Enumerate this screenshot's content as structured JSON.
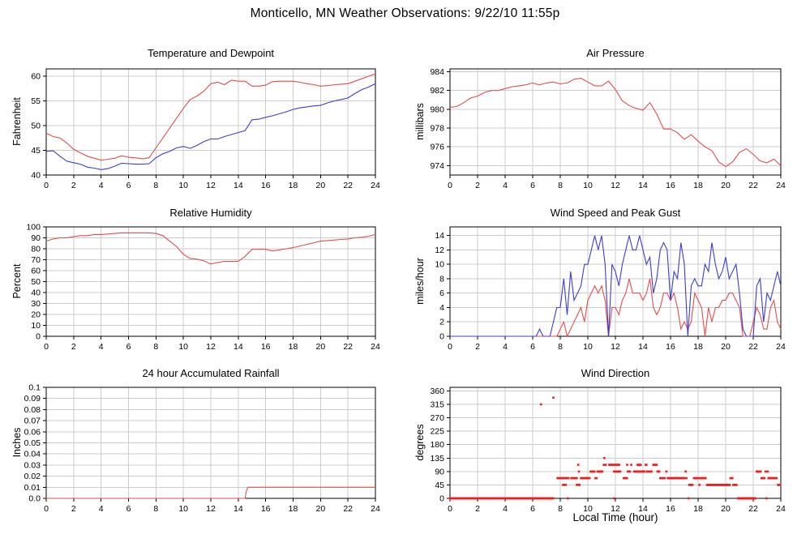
{
  "page_title": "Monticello, MN Weather Observations: 9/22/10 11:55p",
  "colors": {
    "red": "#e84c4c",
    "blue": "#3c3cd2",
    "scatter_red": "#f21d1d",
    "grid": "#cccccc",
    "axis": "#000000"
  },
  "chart_data": [
    {
      "id": "temperature-dewpoint",
      "type": "line",
      "title": "Temperature and Dewpoint",
      "ylabel": "Fahrenheit",
      "xlim": [
        0,
        24
      ],
      "ylim": [
        40,
        61.5
      ],
      "xticks": [
        0,
        2,
        4,
        6,
        8,
        10,
        12,
        14,
        16,
        18,
        20,
        22,
        24
      ],
      "yticks": [
        40,
        45,
        50,
        55,
        60
      ],
      "series": [
        {
          "name": "temperature",
          "color": "red",
          "x0": 0,
          "dx": 0.5,
          "y": [
            48.5,
            47.8,
            47.5,
            46.5,
            45.2,
            44.5,
            43.8,
            43.4,
            43.0,
            43.2,
            43.4,
            43.9,
            43.6,
            43.5,
            43.3,
            43.5,
            45.5,
            47.5,
            49.5,
            51.5,
            53.5,
            55.3,
            56.0,
            57.0,
            58.5,
            58.8,
            58.3,
            59.2,
            59.0,
            59.0,
            58.0,
            58.0,
            58.2,
            58.9,
            59.0,
            59.0,
            59.0,
            58.8,
            58.5,
            58.3,
            58.0,
            58.1,
            58.3,
            58.4,
            58.5,
            59.0,
            59.5,
            60.0,
            60.5
          ]
        },
        {
          "name": "dewpoint",
          "color": "blue",
          "x0": 0,
          "dx": 0.5,
          "y": [
            44.8,
            44.9,
            43.8,
            42.8,
            42.5,
            42.2,
            41.6,
            41.4,
            41.1,
            41.3,
            41.8,
            42.4,
            42.3,
            42.2,
            42.2,
            42.3,
            43.5,
            44.3,
            44.8,
            45.5,
            45.8,
            45.4,
            46.0,
            46.8,
            47.3,
            47.3,
            47.8,
            48.2,
            48.6,
            49.0,
            51.2,
            51.3,
            51.7,
            52.0,
            52.4,
            52.8,
            53.3,
            53.6,
            53.8,
            54.0,
            54.1,
            54.6,
            55.0,
            55.3,
            55.6,
            56.5,
            57.3,
            57.8,
            58.5
          ]
        }
      ]
    },
    {
      "id": "air-pressure",
      "type": "line",
      "title": "Air Pressure",
      "ylabel": "millibars",
      "xlim": [
        0,
        24
      ],
      "ylim": [
        973,
        984.3
      ],
      "xticks": [
        0,
        2,
        4,
        6,
        8,
        10,
        12,
        14,
        16,
        18,
        20,
        22,
        24
      ],
      "yticks": [
        974,
        976,
        978,
        980,
        982,
        984
      ],
      "series": [
        {
          "name": "pressure",
          "color": "red",
          "x0": 0,
          "dx": 0.5,
          "y": [
            980.2,
            980.3,
            980.7,
            981.2,
            981.4,
            981.8,
            982.0,
            982.0,
            982.2,
            982.4,
            982.5,
            982.6,
            982.8,
            982.6,
            982.8,
            982.9,
            982.7,
            982.8,
            983.2,
            983.3,
            982.9,
            982.5,
            982.5,
            983.0,
            982.1,
            980.9,
            980.4,
            980.1,
            979.9,
            980.7,
            979.5,
            977.9,
            977.9,
            977.5,
            976.8,
            977.3,
            976.6,
            976.0,
            975.6,
            974.4,
            973.9,
            974.4,
            975.4,
            975.8,
            975.2,
            974.5,
            974.3,
            974.7,
            974.0
          ]
        }
      ]
    },
    {
      "id": "relative-humidity",
      "type": "line",
      "title": "Relative Humidity",
      "ylabel": "Percent",
      "xlim": [
        0,
        24
      ],
      "ylim": [
        0,
        100
      ],
      "xticks": [
        0,
        2,
        4,
        6,
        8,
        10,
        12,
        14,
        16,
        18,
        20,
        22,
        24
      ],
      "yticks": [
        0,
        10,
        20,
        30,
        40,
        50,
        60,
        70,
        80,
        90,
        100
      ],
      "series": [
        {
          "name": "humidity",
          "color": "red",
          "x0": 0,
          "dx": 0.5,
          "y": [
            87,
            89,
            90,
            90,
            91,
            92,
            92,
            93,
            93,
            93.5,
            94,
            94.5,
            94.5,
            94.5,
            94.5,
            94.5,
            94,
            92,
            87,
            82,
            75,
            71,
            70.5,
            69,
            66,
            67.5,
            68.5,
            68.5,
            68.5,
            73,
            79.5,
            79.5,
            79.5,
            78,
            79,
            80,
            81,
            82.5,
            84,
            85.5,
            87,
            87.5,
            88,
            88.5,
            89,
            90,
            90.5,
            91.5,
            93
          ]
        }
      ]
    },
    {
      "id": "wind-speed-gust",
      "type": "line",
      "title": "Wind Speed and Peak Gust",
      "ylabel": "miles/hour",
      "xlim": [
        0,
        24
      ],
      "ylim": [
        0,
        15.2
      ],
      "xticks": [
        0,
        2,
        4,
        6,
        8,
        10,
        12,
        14,
        16,
        18,
        20,
        22,
        24
      ],
      "yticks": [
        0,
        2,
        4,
        6,
        8,
        10,
        12,
        14
      ],
      "series": [
        {
          "name": "wind-speed",
          "color": "red",
          "x0": 0,
          "dx": 0.25,
          "y": [
            0,
            0,
            0,
            0,
            0,
            0,
            0,
            0,
            0,
            0,
            0,
            0,
            0,
            0,
            0,
            0,
            0,
            0,
            0,
            0,
            0,
            0,
            0,
            0,
            0,
            0,
            0,
            0,
            0,
            0,
            0,
            0,
            1,
            2,
            0,
            1,
            2,
            3,
            4,
            2,
            5,
            6,
            7,
            6,
            7,
            5,
            0,
            4,
            4,
            3,
            5,
            6,
            8,
            6,
            6,
            6,
            5,
            6,
            8,
            4,
            3,
            4,
            6,
            6,
            5,
            6,
            4,
            1,
            2,
            1,
            2,
            6,
            5,
            4,
            0,
            4,
            2,
            4,
            4,
            5,
            5,
            6,
            6,
            5,
            4,
            0,
            0,
            0,
            2,
            4,
            3,
            1,
            1,
            4,
            5,
            2,
            1
          ]
        },
        {
          "name": "peak-gust",
          "color": "blue",
          "x0": 0,
          "dx": 0.25,
          "y": [
            0,
            0,
            0,
            0,
            0,
            0,
            0,
            0,
            0,
            0,
            0,
            0,
            0,
            0,
            0,
            0,
            0,
            0,
            0,
            0,
            0,
            0,
            0,
            0,
            0,
            0,
            1,
            0,
            0,
            0,
            2,
            4,
            4,
            8,
            3,
            9,
            5,
            6,
            7,
            10,
            10,
            12,
            14,
            12,
            14,
            10,
            0,
            10,
            9,
            7,
            10,
            12,
            14,
            12,
            12,
            14,
            12,
            10,
            11,
            6,
            8,
            12,
            13,
            12,
            5,
            9,
            8,
            13,
            10,
            0,
            7,
            8,
            7,
            7,
            10,
            9,
            13,
            10,
            8,
            9,
            11,
            8,
            9,
            10,
            6,
            1,
            0,
            0,
            0,
            7,
            8,
            2,
            6,
            5,
            7,
            9,
            7
          ]
        }
      ]
    },
    {
      "id": "accumulated-rainfall",
      "type": "line",
      "title": "24 hour Accumulated Rainfall",
      "ylabel": "Inches",
      "xlim": [
        0,
        24
      ],
      "ylim": [
        0,
        0.1
      ],
      "xticks": [
        0,
        2,
        4,
        6,
        8,
        10,
        12,
        14,
        16,
        18,
        20,
        22,
        24
      ],
      "yticks": [
        0,
        0.01,
        0.02,
        0.03,
        0.04,
        0.05,
        0.06,
        0.07,
        0.08,
        0.09,
        0.1
      ],
      "ytick_labels": [
        "0.0",
        "0.01",
        "0.02",
        "0.03",
        "0.04",
        "0.05",
        "0.06",
        "0.07",
        "0.08",
        "0.09",
        "0.1"
      ],
      "series": [
        {
          "name": "rainfall",
          "color": "red",
          "x": [
            0,
            14.5,
            14.6,
            14.7,
            24
          ],
          "y": [
            0,
            0,
            0.007,
            0.01,
            0.01
          ]
        }
      ]
    },
    {
      "id": "wind-direction",
      "type": "scatter",
      "title": "Wind Direction",
      "ylabel": "degrees",
      "xlabel": "Local Time (hour)",
      "xlim": [
        0,
        24
      ],
      "ylim": [
        0,
        372
      ],
      "xticks": [
        0,
        2,
        4,
        6,
        8,
        10,
        12,
        14,
        16,
        18,
        20,
        22,
        24
      ],
      "yticks": [
        0,
        45,
        90,
        135,
        180,
        225,
        270,
        315,
        360
      ],
      "series": [
        {
          "name": "direction",
          "color": "scatter_red",
          "runs": [
            [
              0,
              7.55,
              0.07,
              0
            ],
            [
              7.8,
              8.6,
              0.08,
              67.5
            ],
            [
              8.8,
              9.25,
              0.08,
              67.5
            ],
            [
              8.2,
              8.45,
              0.1,
              45
            ],
            [
              9.2,
              9.45,
              0.1,
              45
            ],
            [
              9.5,
              10.15,
              0.07,
              67.5
            ],
            [
              10.2,
              10.5,
              0.07,
              90
            ],
            [
              10.55,
              10.65,
              0.08,
              67.5
            ],
            [
              10.7,
              11.1,
              0.07,
              90
            ],
            [
              11.55,
              12.35,
              0.09,
              112.5
            ],
            [
              11.9,
              12.4,
              0.09,
              90
            ],
            [
              12.6,
              12.85,
              0.08,
              67.5
            ],
            [
              12.9,
              13.1,
              0.08,
              90
            ],
            [
              13.35,
              14.15,
              0.07,
              90
            ],
            [
              13.6,
              13.85,
              0.08,
              112.5
            ],
            [
              14.3,
              14.65,
              0.08,
              90
            ],
            [
              14.75,
              15.0,
              0.08,
              112.5
            ],
            [
              15.05,
              15.2,
              0.07,
              90
            ],
            [
              15.25,
              15.6,
              0.08,
              67.5
            ],
            [
              15.8,
              17.05,
              0.06,
              67.5
            ],
            [
              17.35,
              17.65,
              0.08,
              45
            ],
            [
              17.7,
              18.05,
              0.08,
              67.5
            ],
            [
              18.15,
              18.6,
              0.08,
              67.5
            ],
            [
              18.65,
              20.3,
              0.05,
              45
            ],
            [
              20.35,
              20.5,
              0.07,
              67.5
            ],
            [
              20.55,
              20.8,
              0.08,
              45
            ],
            [
              20.9,
              22.15,
              0.05,
              0
            ],
            [
              22.25,
              22.55,
              0.07,
              90
            ],
            [
              22.6,
              22.85,
              0.07,
              67.5
            ],
            [
              23.1,
              23.75,
              0.06,
              67.5
            ],
            [
              23.8,
              24.0,
              0.07,
              45
            ]
          ],
          "points": [
            [
              6.6,
              315
            ],
            [
              7.5,
              337.5
            ],
            [
              8.55,
              0
            ],
            [
              9.3,
              112.5
            ],
            [
              9.35,
              90
            ],
            [
              11.15,
              112.5
            ],
            [
              11.2,
              135
            ],
            [
              11.3,
              112.5
            ],
            [
              11.9,
              0
            ],
            [
              12.85,
              112.5
            ],
            [
              13.15,
              112.5
            ],
            [
              14.2,
              112.5
            ],
            [
              14.25,
              112.5
            ],
            [
              15.7,
              90
            ],
            [
              17.1,
              90
            ],
            [
              17.15,
              67.5
            ],
            [
              17.3,
              0
            ],
            [
              18.1,
              45
            ],
            [
              22.9,
              90
            ],
            [
              22.95,
              0
            ],
            [
              23.05,
              90
            ]
          ]
        }
      ]
    }
  ]
}
